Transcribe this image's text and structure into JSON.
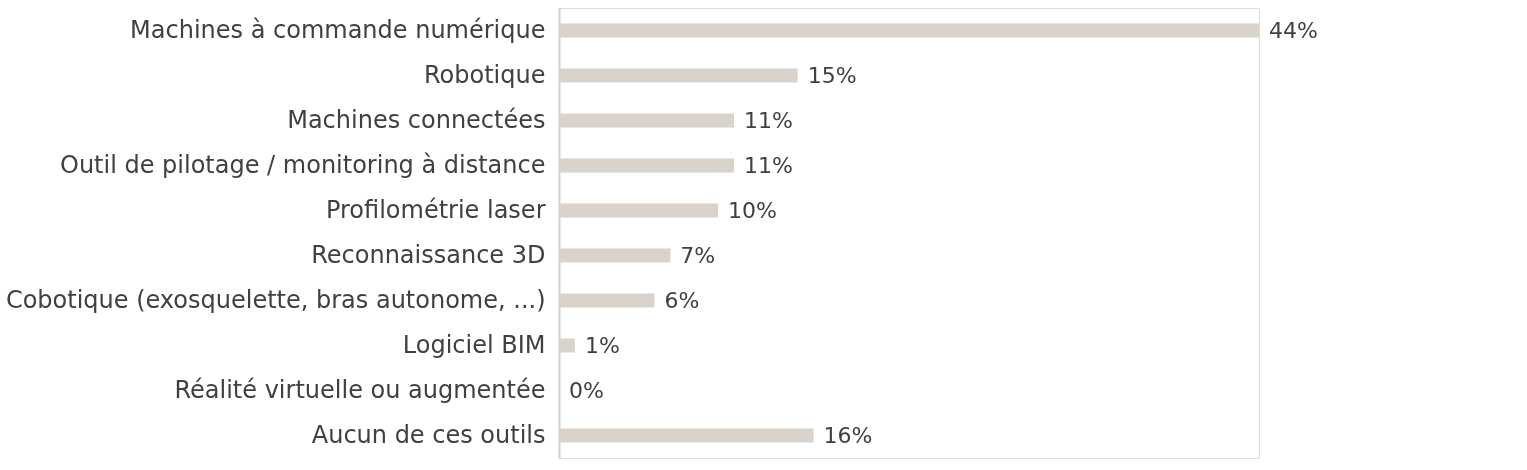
{
  "chart_data": {
    "type": "bar",
    "orientation": "horizontal",
    "categories": [
      "Machines à commande numérique",
      "Robotique",
      "Machines connectées",
      "Outil de pilotage / monitoring à distance",
      "Profilométrie laser",
      "Reconnaissance 3D",
      "Cobotique (exosquelette, bras autonome, ...)",
      "Logiciel BIM",
      "Réalité virtuelle ou augmentée",
      "Aucun de ces outils"
    ],
    "values": [
      44,
      15,
      11,
      11,
      10,
      7,
      6,
      1,
      0,
      16
    ],
    "value_labels": [
      "44%",
      "15%",
      "11%",
      "11%",
      "10%",
      "7%",
      "6%",
      "1%",
      "0%",
      "16%"
    ],
    "color": "#d9d3cc"
  }
}
